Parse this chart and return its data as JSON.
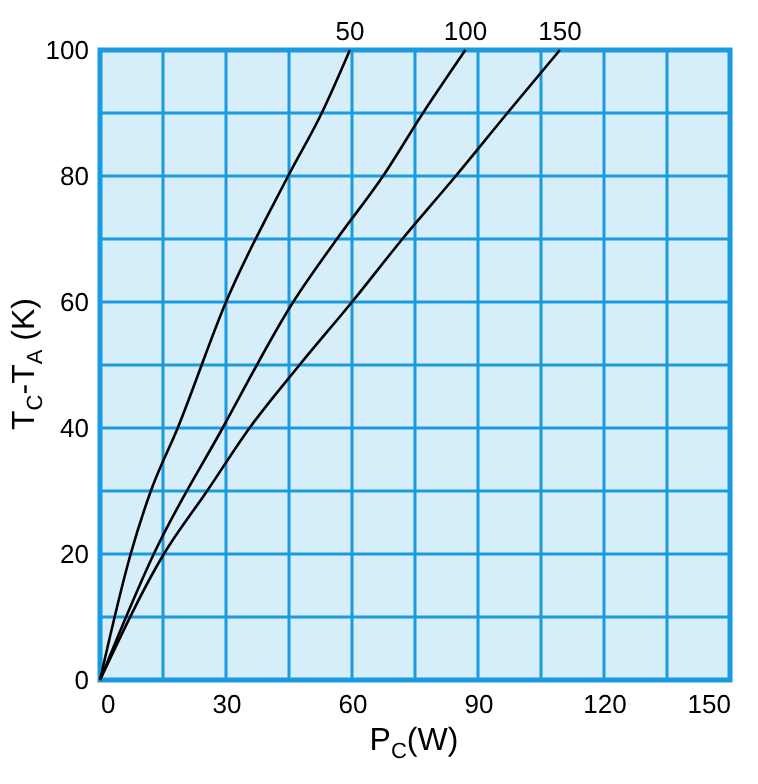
{
  "chart_data": {
    "type": "line",
    "xlabel": "P$_{C}$(W)",
    "ylabel": "T$_{C}$-T$_{A}$ (K)",
    "xlim": [
      0,
      150
    ],
    "ylim": [
      0,
      100
    ],
    "xticks": [
      0,
      {
        "value": 15,
        "label": null
      },
      30,
      {
        "value": 45,
        "label": null
      },
      60,
      {
        "value": 75,
        "label": null
      },
      90,
      {
        "value": 105,
        "label": null
      },
      120,
      {
        "value": 135,
        "label": null
      },
      150
    ],
    "yticks": [
      0,
      {
        "value": 10,
        "label": null
      },
      20,
      {
        "value": 30,
        "label": null
      },
      40,
      {
        "value": 50,
        "label": null
      },
      60,
      {
        "value": 70,
        "label": null
      },
      80,
      {
        "value": 90,
        "label": null
      },
      100
    ],
    "grid": true,
    "legend": false,
    "marker": "none",
    "line_style": "solid",
    "series": [
      {
        "name": "50",
        "color": "#000000",
        "x": [
          0,
          7.3,
          12.1,
          18.5,
          30,
          44.8,
          52.8,
          59.5
        ],
        "values": [
          0,
          20,
          30,
          40,
          60,
          80,
          90,
          100
        ]
      },
      {
        "name": "100",
        "color": "#000000",
        "x": [
          0,
          12.8,
          29.2,
          46,
          56.4,
          67.4,
          76.9,
          87
        ],
        "values": [
          0,
          20,
          40,
          60,
          70,
          80,
          90,
          100
        ]
      },
      {
        "name": "150",
        "color": "#000000",
        "x": [
          0,
          15.2,
          25.5,
          35.6,
          47.5,
          60,
          72,
          84.7,
          97,
          109.5
        ],
        "values": [
          0,
          20,
          30,
          40,
          50,
          60,
          70,
          80,
          90,
          100
        ]
      }
    ]
  }
}
